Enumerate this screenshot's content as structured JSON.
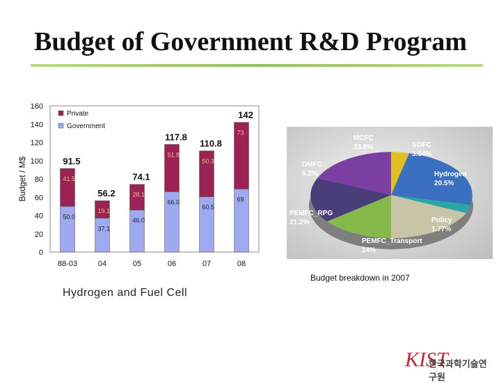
{
  "title": "Budget of Government R&D Program",
  "chart_data": {
    "type": "bar",
    "stacked": true,
    "categories": [
      "88-03",
      "04",
      "05",
      "06",
      "07",
      "08"
    ],
    "ylabel": "Budget / M$",
    "ylim": [
      0,
      160
    ],
    "yticks": [
      "0",
      "20",
      "40",
      "60",
      "80",
      "100",
      "120",
      "140",
      "160"
    ],
    "totals": [
      "91.5",
      "56.2",
      "74.1",
      "117.8",
      "110.8",
      "142"
    ],
    "series": [
      {
        "name": "Government",
        "color": "#9fa9f0",
        "values": [
          50,
          37.1,
          46,
          66,
          60.5,
          69
        ],
        "labels": [
          "50.0",
          "37.1",
          "46.0",
          "66.0",
          "60.5",
          "69"
        ]
      },
      {
        "name": "Private",
        "color": "#9b2252",
        "values": [
          41.5,
          19.1,
          28.1,
          51.8,
          50.3,
          73
        ],
        "labels": [
          "41.5",
          "19.1",
          "28.1",
          "51.8",
          "50.3",
          "73"
        ]
      }
    ],
    "legend": [
      "Private",
      "Government"
    ],
    "legend_position": "top-left"
  },
  "pie_chart": {
    "type": "pie",
    "slices": [
      {
        "label": "MCFC",
        "value": "23.8%",
        "color": "#7b3fa3"
      },
      {
        "label": "SOFC",
        "value": "3.54%",
        "color": "#e0c020"
      },
      {
        "label": "Hydrogen",
        "value": "20.5%",
        "color": "#3b6fc0"
      },
      {
        "label": "Policy",
        "value": "1.77%",
        "color": "#2aa6a6"
      },
      {
        "label": "PEMFC_Transport",
        "value": "24%",
        "color": "#c8c4a8"
      },
      {
        "label": "PEMFC_RPG",
        "value": "21.2%",
        "color": "#86b84a"
      },
      {
        "label": "DMFC",
        "value": "5.2%",
        "color": "#4a3e7a"
      }
    ]
  },
  "captions": {
    "left": "Hydrogen and Fuel Cell",
    "right": "Budget breakdown in 2007"
  },
  "logo": {
    "mark": "KIST",
    "name": "한국과학기술연구원"
  }
}
